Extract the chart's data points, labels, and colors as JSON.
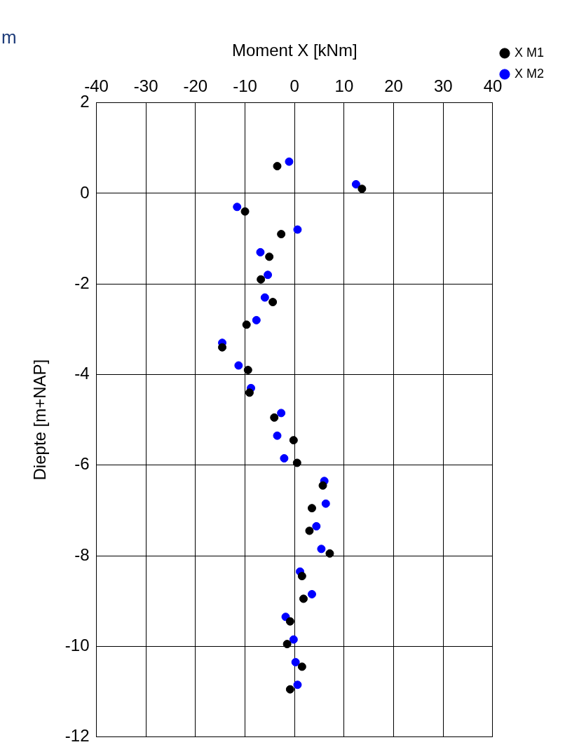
{
  "chart_data": {
    "type": "scatter",
    "title": "m",
    "xlabel": "Moment X [kNm]",
    "ylabel": "Diepte [m+NAP]",
    "xlim": [
      -40,
      40
    ],
    "xticks": [
      -40,
      -30,
      -20,
      -10,
      0,
      10,
      20,
      30,
      40
    ],
    "ylim": [
      -12,
      2
    ],
    "yticks": [
      -12,
      -10,
      -8,
      -6,
      -4,
      -2,
      0,
      2
    ],
    "grid": true,
    "legend": "top right",
    "marker": "circle",
    "series": [
      {
        "name": "X M1",
        "color": "#000000",
        "x": [
          -3.5,
          13.6,
          -10,
          -2.7,
          -5.1,
          -6.8,
          -4.4,
          -9.7,
          -14.6,
          -9.4,
          -9.1,
          -4.1,
          -0.2,
          0.5,
          5.7,
          3.5,
          3.0,
          7.1,
          1.5,
          1.8,
          -0.9,
          -1.5,
          1.5,
          -0.9
        ],
        "values": [
          0.6,
          0.1,
          -0.4,
          -0.9,
          -1.4,
          -1.9,
          -2.4,
          -2.9,
          -3.4,
          -3.9,
          -4.4,
          -4.95,
          -5.45,
          -5.95,
          -6.45,
          -6.95,
          -7.45,
          -7.95,
          -8.45,
          -8.95,
          -9.45,
          -9.95,
          -10.45,
          -10.95
        ]
      },
      {
        "name": "X M2",
        "color": "#0000ff",
        "x": [
          -1.1,
          12.4,
          -11.6,
          0.6,
          -6.9,
          -5.4,
          -6.0,
          -7.7,
          -14.6,
          -11.3,
          -8.8,
          -2.7,
          -3.5,
          -2.1,
          6.0,
          6.3,
          4.4,
          5.4,
          1.1,
          3.5,
          -1.8,
          -0.2,
          0.2,
          0.6
        ],
        "values": [
          0.7,
          0.2,
          -0.3,
          -0.8,
          -1.3,
          -1.8,
          -2.3,
          -2.8,
          -3.3,
          -3.8,
          -4.3,
          -4.85,
          -5.35,
          -5.85,
          -6.35,
          -6.85,
          -7.35,
          -7.85,
          -8.35,
          -8.85,
          -9.35,
          -9.85,
          -10.35,
          -10.85
        ]
      }
    ]
  }
}
